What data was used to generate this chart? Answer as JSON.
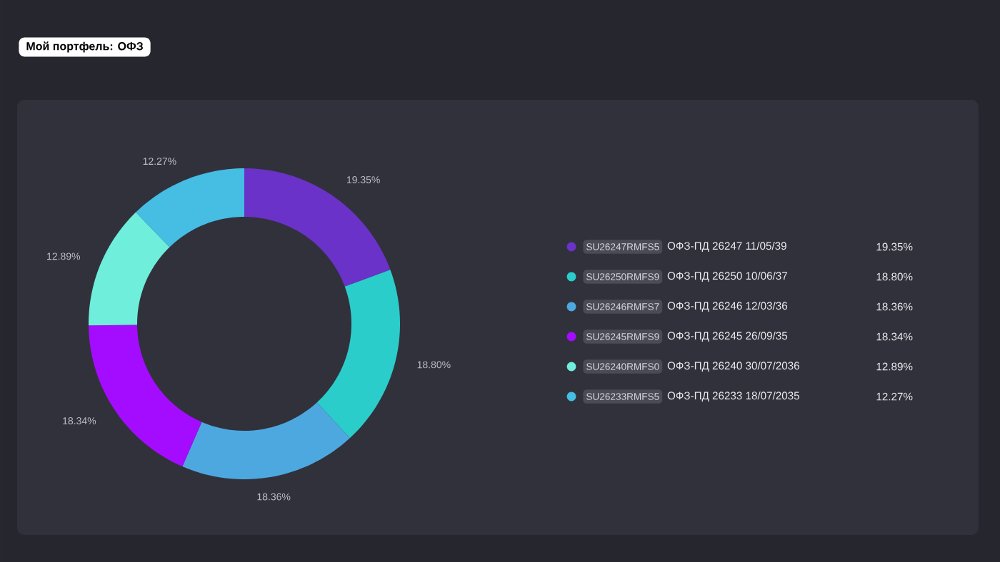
{
  "chart_data": {
    "type": "donut",
    "title": "Мой портфель: ОФЗ",
    "categories": [
      "SU26247RMFS5",
      "SU26250RMFS9",
      "SU26246RMFS7",
      "SU26245RMFS9",
      "SU26240RMFS0",
      "SU26233RMFS5"
    ],
    "values": [
      19.35,
      18.8,
      18.36,
      18.34,
      12.89,
      12.27
    ],
    "colors": [
      "#6a32c8",
      "#2bcdcb",
      "#4ea8e0",
      "#a40cff",
      "#6eeedb",
      "#46bde3"
    ],
    "value_labels": [
      "19.35%",
      "18.80%",
      "18.36%",
      "18.34%",
      "12.89%",
      "12.27%"
    ],
    "annotations": [
      "ОФЗ-ПД 26247 11/05/39",
      "ОФЗ-ПД 26250 10/06/37",
      "ОФЗ-ПД 26246 12/03/36",
      "ОФЗ-ПД 26245 26/09/35",
      "ОФЗ-ПД 26240 30/07/2036",
      "ОФЗ-ПД 26233 18/07/2035"
    ],
    "legend": "right"
  }
}
